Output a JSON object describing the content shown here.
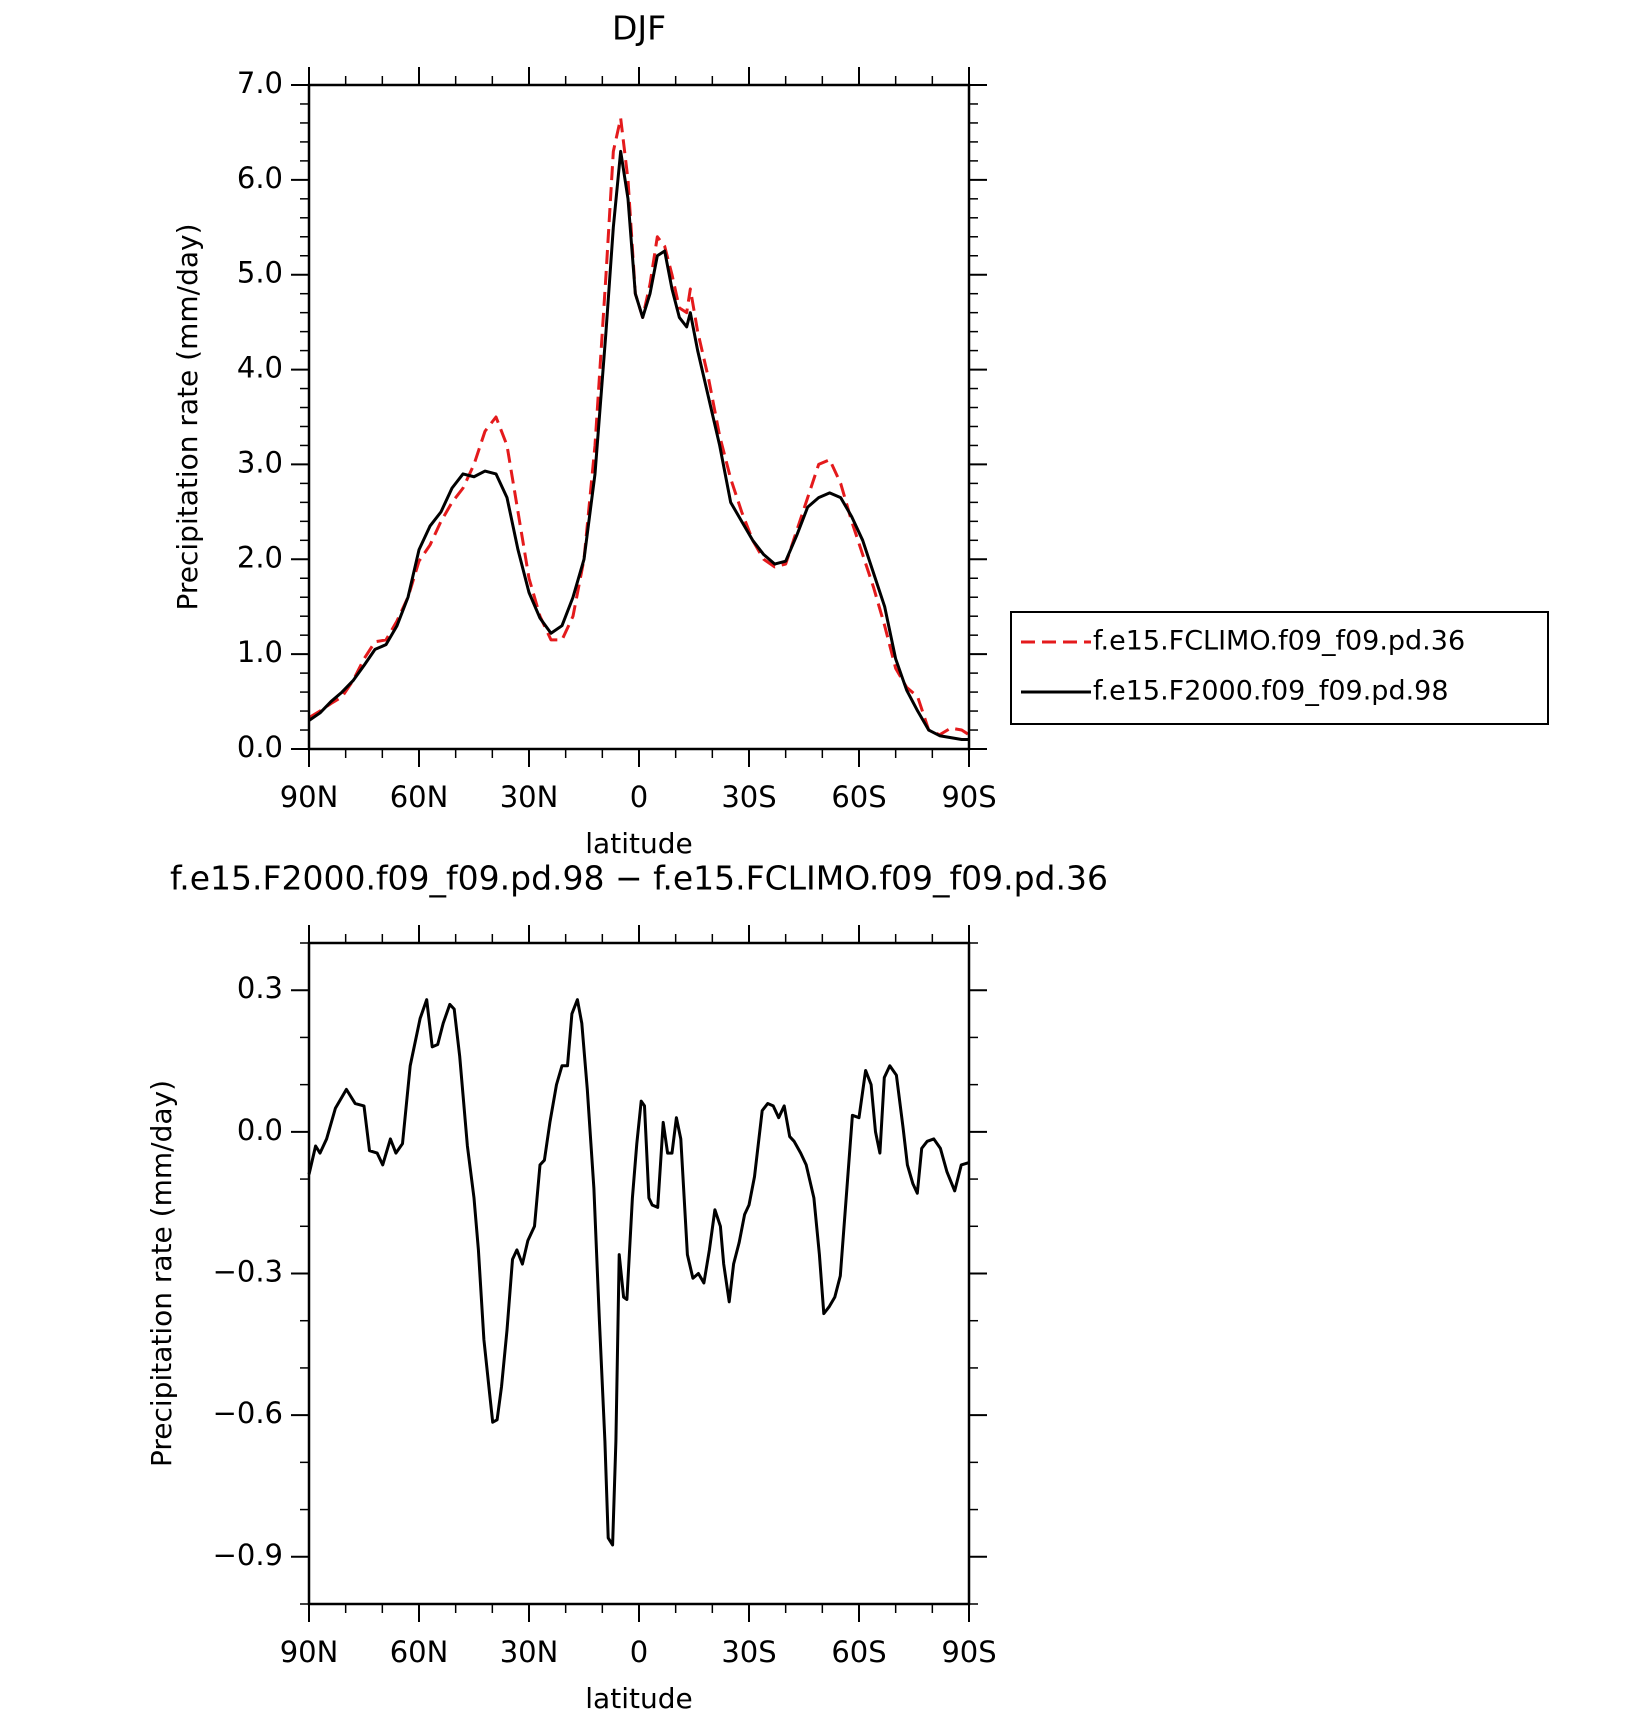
{
  "chart_data": [
    {
      "type": "line",
      "title": "DJF",
      "xlabel": "latitude",
      "ylabel": "Precipitation rate (mm/day)",
      "xlim": [
        90,
        -90
      ],
      "ylim": [
        0,
        7
      ],
      "xticks": [
        {
          "value": 90,
          "label": "90N"
        },
        {
          "value": 60,
          "label": "60N"
        },
        {
          "value": 30,
          "label": "30N"
        },
        0,
        {
          "value": -30,
          "label": "30S"
        },
        {
          "value": -60,
          "label": "60S"
        },
        {
          "value": -90,
          "label": "90S"
        }
      ],
      "xminorticks": [
        80,
        70,
        50,
        40,
        20,
        10,
        -10,
        -20,
        -40,
        -50,
        -70,
        -80
      ],
      "yticks": [
        {
          "value": 0,
          "label": "0.0"
        },
        {
          "value": 1,
          "label": "1.0"
        },
        {
          "value": 2,
          "label": "2.0"
        },
        {
          "value": 3,
          "label": "3.0"
        },
        {
          "value": 4,
          "label": "4.0"
        },
        {
          "value": 5,
          "label": "5.0"
        },
        {
          "value": 6,
          "label": "6.0"
        },
        {
          "value": 7,
          "label": "7.0"
        }
      ],
      "yminorticks": [
        0.2,
        0.4,
        0.6,
        0.8,
        1.2,
        1.4,
        1.6,
        1.8,
        2.2,
        2.4,
        2.6,
        2.8,
        3.2,
        3.4,
        3.6,
        3.8,
        4.2,
        4.4,
        4.6,
        4.8,
        5.2,
        5.4,
        5.6,
        5.8,
        6.2,
        6.4,
        6.6,
        6.8
      ],
      "legend": "right",
      "x": [
        90,
        87,
        84,
        81,
        78,
        75,
        72,
        69,
        66,
        63,
        60,
        57,
        54,
        51,
        48,
        45,
        42,
        39,
        36,
        33,
        30,
        27,
        24,
        21,
        18,
        15,
        12,
        9,
        7,
        5,
        3,
        1,
        -1,
        -3,
        -5,
        -7,
        -9,
        -11,
        -13,
        -14,
        -16,
        -19,
        -22,
        -25,
        -28,
        -31,
        -34,
        -37,
        -40,
        -43,
        -46,
        -49,
        -52,
        -55,
        -58,
        -61,
        -64,
        -67,
        -70,
        -73,
        -76,
        -79,
        -82,
        -85,
        -88,
        -90
      ],
      "series": [
        {
          "name": "f.e15.FCLIMO.f09_f09.pd.36",
          "color": "#e41a1c",
          "dashed": true,
          "values": [
            0.33,
            0.4,
            0.48,
            0.55,
            0.72,
            0.95,
            1.13,
            1.15,
            1.35,
            1.6,
            1.98,
            2.15,
            2.4,
            2.6,
            2.75,
            3.0,
            3.35,
            3.5,
            3.2,
            2.5,
            1.8,
            1.4,
            1.15,
            1.15,
            1.4,
            2.0,
            3.2,
            5.0,
            6.3,
            6.65,
            6.0,
            4.8,
            4.55,
            4.9,
            5.4,
            5.3,
            5.0,
            4.65,
            4.6,
            4.85,
            4.4,
            3.9,
            3.3,
            2.85,
            2.5,
            2.2,
            2.0,
            1.92,
            1.95,
            2.3,
            2.65,
            3.0,
            3.05,
            2.8,
            2.4,
            2.05,
            1.7,
            1.3,
            0.85,
            0.65,
            0.55,
            0.2,
            0.15,
            0.22,
            0.2,
            0.15
          ]
        },
        {
          "name": "f.e15.F2000.f09_f09.pd.98",
          "color": "#000000",
          "dashed": false,
          "values": [
            0.3,
            0.38,
            0.5,
            0.6,
            0.72,
            0.88,
            1.05,
            1.1,
            1.3,
            1.6,
            2.1,
            2.35,
            2.5,
            2.75,
            2.9,
            2.87,
            2.93,
            2.9,
            2.65,
            2.1,
            1.65,
            1.38,
            1.22,
            1.3,
            1.6,
            2.0,
            2.9,
            4.4,
            5.5,
            6.3,
            5.8,
            4.8,
            4.55,
            4.8,
            5.2,
            5.25,
            4.85,
            4.55,
            4.45,
            4.6,
            4.2,
            3.7,
            3.2,
            2.6,
            2.4,
            2.2,
            2.05,
            1.95,
            1.98,
            2.25,
            2.55,
            2.65,
            2.7,
            2.65,
            2.45,
            2.2,
            1.85,
            1.5,
            0.95,
            0.62,
            0.4,
            0.2,
            0.14,
            0.12,
            0.1,
            0.1
          ]
        }
      ]
    },
    {
      "type": "line",
      "title": "f.e15.F2000.f09_f09.pd.98 − f.e15.FCLIMO.f09_f09.pd.36",
      "xlabel": "latitude",
      "ylabel": "Precipitation rate (mm/day)",
      "xlim": [
        90,
        -90
      ],
      "ylim": [
        -1.0,
        0.4
      ],
      "xticks": [
        {
          "value": 90,
          "label": "90N"
        },
        {
          "value": 60,
          "label": "60N"
        },
        {
          "value": 30,
          "label": "30N"
        },
        0,
        {
          "value": -30,
          "label": "30S"
        },
        {
          "value": -60,
          "label": "60S"
        },
        {
          "value": -90,
          "label": "90S"
        }
      ],
      "xminorticks": [
        80,
        70,
        50,
        40,
        20,
        10,
        -10,
        -20,
        -40,
        -50,
        -70,
        -80
      ],
      "yticks": [
        {
          "value": -0.9,
          "label": "−0.9"
        },
        {
          "value": -0.6,
          "label": "−0.6"
        },
        {
          "value": -0.3,
          "label": "−0.3"
        },
        {
          "value": 0,
          "label": "0.0"
        },
        0.3
      ],
      "yminorticks": [
        -1.0,
        -0.8,
        -0.7,
        -0.5,
        -0.4,
        -0.2,
        -0.1,
        0.1,
        0.2,
        0.4
      ],
      "x": [
        90,
        88.2,
        87,
        85.2,
        82.8,
        79.8,
        77.4,
        75,
        73.5,
        71.4,
        69.9,
        67.8,
        66.3,
        64.5,
        62.4,
        59.7,
        57.9,
        56.4,
        54.9,
        53.4,
        51.6,
        50.4,
        48.9,
        46.8,
        45,
        43.8,
        42.3,
        40.8,
        39.9,
        38.7,
        37.5,
        36,
        34.5,
        33.3,
        31.8,
        30.3,
        28.5,
        27,
        25.8,
        24.3,
        22.5,
        21,
        19.5,
        18.3,
        16.8,
        15.6,
        14.1,
        12.3,
        10.8,
        9.3,
        8.4,
        7.2,
        6.3,
        5.4,
        4.2,
        3.3,
        1.8,
        0.6,
        -0.6,
        -1.5,
        -2.7,
        -3.6,
        -5.1,
        -6.6,
        -7.8,
        -9,
        -10.2,
        -11.4,
        -13.2,
        -14.7,
        -16.2,
        -17.7,
        -19.2,
        -20.7,
        -22.2,
        -23.1,
        -24.6,
        -25.8,
        -27.3,
        -28.8,
        -30,
        -31.5,
        -33.6,
        -35.1,
        -36.6,
        -38.1,
        -39.6,
        -41.1,
        -42.3,
        -44.1,
        -45.6,
        -47.7,
        -49.2,
        -50.4,
        -51.9,
        -53.4,
        -54.9,
        -56.7,
        -58.2,
        -60,
        -61.8,
        -63.3,
        -64.5,
        -65.7,
        -66.9,
        -68.4,
        -70.2,
        -72,
        -73.2,
        -74.7,
        -75.9,
        -77.1,
        -78.6,
        -80.4,
        -82.2,
        -84,
        -86.1,
        -87.9,
        -90
      ],
      "series": [
        {
          "color": "#000000",
          "dashed": false,
          "values": [
            -0.09,
            -0.03,
            -0.045,
            -0.015,
            0.05,
            0.09,
            0.06,
            0.055,
            -0.04,
            -0.045,
            -0.07,
            -0.015,
            -0.045,
            -0.025,
            0.14,
            0.24,
            0.28,
            0.18,
            0.185,
            0.23,
            0.27,
            0.26,
            0.16,
            -0.03,
            -0.14,
            -0.25,
            -0.44,
            -0.55,
            -0.615,
            -0.61,
            -0.54,
            -0.42,
            -0.27,
            -0.25,
            -0.28,
            -0.23,
            -0.2,
            -0.07,
            -0.06,
            0.02,
            0.1,
            0.14,
            0.14,
            0.25,
            0.28,
            0.23,
            0.09,
            -0.12,
            -0.4,
            -0.655,
            -0.86,
            -0.875,
            -0.655,
            -0.26,
            -0.35,
            -0.355,
            -0.14,
            -0.025,
            0.065,
            0.055,
            -0.14,
            -0.155,
            -0.16,
            0.02,
            -0.045,
            -0.045,
            0.03,
            -0.015,
            -0.26,
            -0.31,
            -0.3,
            -0.32,
            -0.25,
            -0.165,
            -0.2,
            -0.28,
            -0.36,
            -0.28,
            -0.235,
            -0.175,
            -0.155,
            -0.095,
            0.045,
            0.06,
            0.055,
            0.03,
            0.055,
            -0.01,
            -0.02,
            -0.045,
            -0.07,
            -0.14,
            -0.26,
            -0.385,
            -0.37,
            -0.35,
            -0.305,
            -0.12,
            0.035,
            0.03,
            0.13,
            0.1,
            0,
            -0.045,
            0.115,
            0.14,
            0.12,
            0.01,
            -0.07,
            -0.11,
            -0.13,
            -0.035,
            -0.02,
            -0.015,
            -0.035,
            -0.085,
            -0.125,
            -0.07,
            -0.065
          ]
        }
      ]
    }
  ]
}
